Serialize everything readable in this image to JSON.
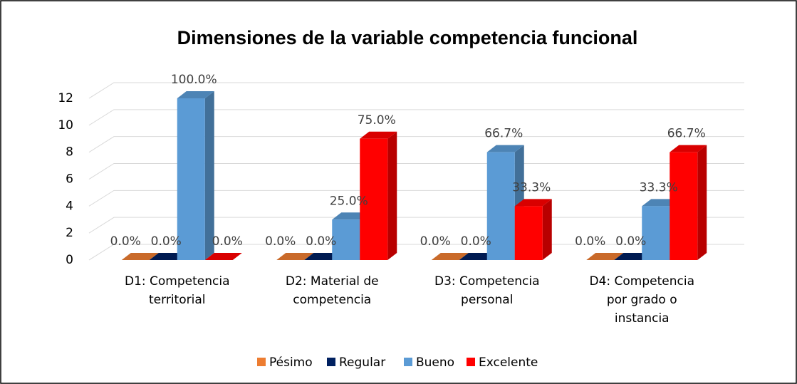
{
  "chart_data": {
    "type": "bar3d",
    "title": "Dimensiones de la variable competencia funcional",
    "categories": [
      "D1: Competencia territorial",
      "D2: Material de competencia",
      "D3: Competencia personal",
      "D4: Competencia por grado o instancia"
    ],
    "series": [
      {
        "name": "Pésimo",
        "color": "#ed7d31",
        "values": [
          0,
          0,
          0,
          0
        ],
        "data_labels": [
          "0.0%",
          "0.0%",
          "0.0%",
          "0.0%"
        ]
      },
      {
        "name": "Regular",
        "color": "#002060",
        "values": [
          0,
          0,
          0,
          0
        ],
        "data_labels": [
          "0.0%",
          "0.0%",
          "0.0%",
          "0.0%"
        ]
      },
      {
        "name": "Bueno",
        "color": "#5b9bd5",
        "values": [
          12,
          3,
          8,
          4
        ],
        "data_labels": [
          "100.0%",
          "25.0%",
          "66.7%",
          "33.3%"
        ]
      },
      {
        "name": "Excelente",
        "color": "#ff0000",
        "values": [
          0,
          9,
          4,
          8
        ],
        "data_labels": [
          "0.0%",
          "75.0%",
          "33.3%",
          "66.7%"
        ]
      }
    ],
    "ylim": [
      0,
      12
    ],
    "yticks": [
      0,
      2,
      4,
      6,
      8,
      10,
      12
    ],
    "grid": true,
    "legend": "bottom"
  }
}
